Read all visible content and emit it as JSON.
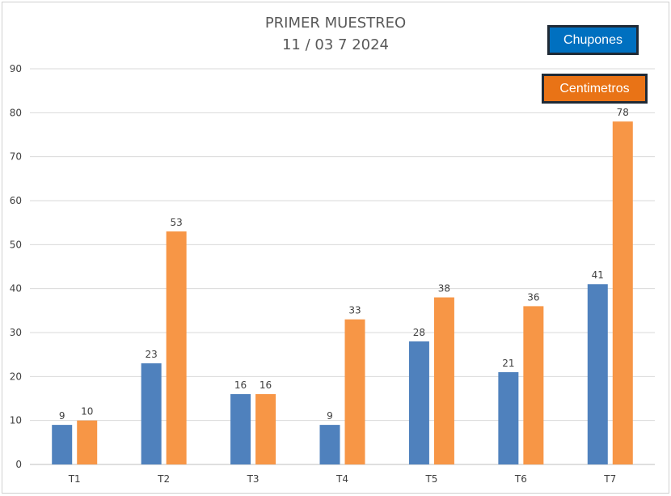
{
  "chart_data": {
    "type": "bar",
    "title": "PRIMER MUESTREO",
    "subtitle": "11 / 03 7 2024",
    "categories": [
      "T1",
      "T2",
      "T3",
      "T4",
      "T5",
      "T6",
      "T7"
    ],
    "series": [
      {
        "name": "Chupones",
        "color": "#4f81bd",
        "values": [
          9,
          23,
          16,
          9,
          28,
          21,
          41
        ]
      },
      {
        "name": "Centimetros",
        "color": "#f79646",
        "values": [
          10,
          53,
          16,
          33,
          38,
          36,
          78
        ]
      }
    ],
    "ylim": [
      0,
      90
    ],
    "yticks": [
      0,
      10,
      20,
      30,
      40,
      50,
      60,
      70,
      80,
      90
    ],
    "grid": true,
    "legend_placement": "top-right"
  },
  "legend": {
    "item1": {
      "label": "Chupones",
      "color": "#0070c0"
    },
    "item2": {
      "label": "Centimetros",
      "color": "#e97316"
    }
  }
}
